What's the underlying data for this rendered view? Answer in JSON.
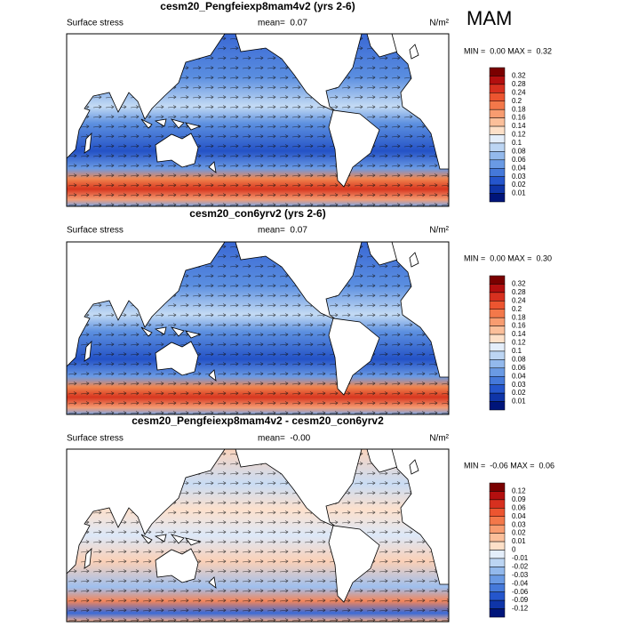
{
  "figure_label": "MAM",
  "panels": [
    {
      "title": "cesm20_Pengfeiexp8mam4v2 (yrs 2-6)",
      "field_label": "Surface stress",
      "mean_label": "mean=  0.07",
      "units": "N/m²",
      "min_max": "MIN =  0.00 MAX =  0.32",
      "colorbar": {
        "labels": [
          "0.32",
          "0.28",
          "0.24",
          "0.2",
          "0.18",
          "0.16",
          "0.14",
          "0.12",
          "0.1",
          "0.08",
          "0.06",
          "0.04",
          "0.03",
          "0.02",
          "0.01"
        ],
        "colors": [
          "#7a0000",
          "#b30f0f",
          "#d7301f",
          "#ec5530",
          "#f3784a",
          "#f89c70",
          "#fbbf9a",
          "#fde0c8",
          "#e4eefa",
          "#bcd5f3",
          "#93b9ec",
          "#6a9ae4",
          "#4579da",
          "#2556cc",
          "#0f35a8",
          "#00157a"
        ]
      }
    },
    {
      "title": "cesm20_con6yrv2 (yrs 2-6)",
      "field_label": "Surface stress",
      "mean_label": "mean=  0.07",
      "units": "N/m²",
      "min_max": "MIN =  0.00 MAX =  0.30",
      "colorbar": {
        "labels": [
          "0.32",
          "0.28",
          "0.24",
          "0.2",
          "0.18",
          "0.16",
          "0.14",
          "0.12",
          "0.1",
          "0.08",
          "0.06",
          "0.04",
          "0.03",
          "0.02",
          "0.01"
        ],
        "colors": [
          "#7a0000",
          "#b30f0f",
          "#d7301f",
          "#ec5530",
          "#f3784a",
          "#f89c70",
          "#fbbf9a",
          "#fde0c8",
          "#e4eefa",
          "#bcd5f3",
          "#93b9ec",
          "#6a9ae4",
          "#4579da",
          "#2556cc",
          "#0f35a8",
          "#00157a"
        ]
      }
    },
    {
      "title": "cesm20_Pengfeiexp8mam4v2 - cesm20_con6yrv2",
      "field_label": "Surface stress",
      "mean_label": "mean=  -0.00",
      "units": "N/m²",
      "min_max": "MIN =  -0.06 MAX =  0.06",
      "colorbar": {
        "labels": [
          "0.12",
          "0.09",
          "0.06",
          "0.04",
          "0.03",
          "0.02",
          "0.01",
          "0",
          "-0.01",
          "-0.02",
          "-0.03",
          "-0.04",
          "-0.06",
          "-0.09",
          "-0.12"
        ],
        "colors": [
          "#7a0000",
          "#b30f0f",
          "#d7301f",
          "#ec5530",
          "#f3784a",
          "#f89c70",
          "#fbbf9a",
          "#fde0c8",
          "#e4eefa",
          "#bcd5f3",
          "#93b9ec",
          "#6a9ae4",
          "#4579da",
          "#2556cc",
          "#0f35a8",
          "#00157a"
        ]
      }
    }
  ]
}
